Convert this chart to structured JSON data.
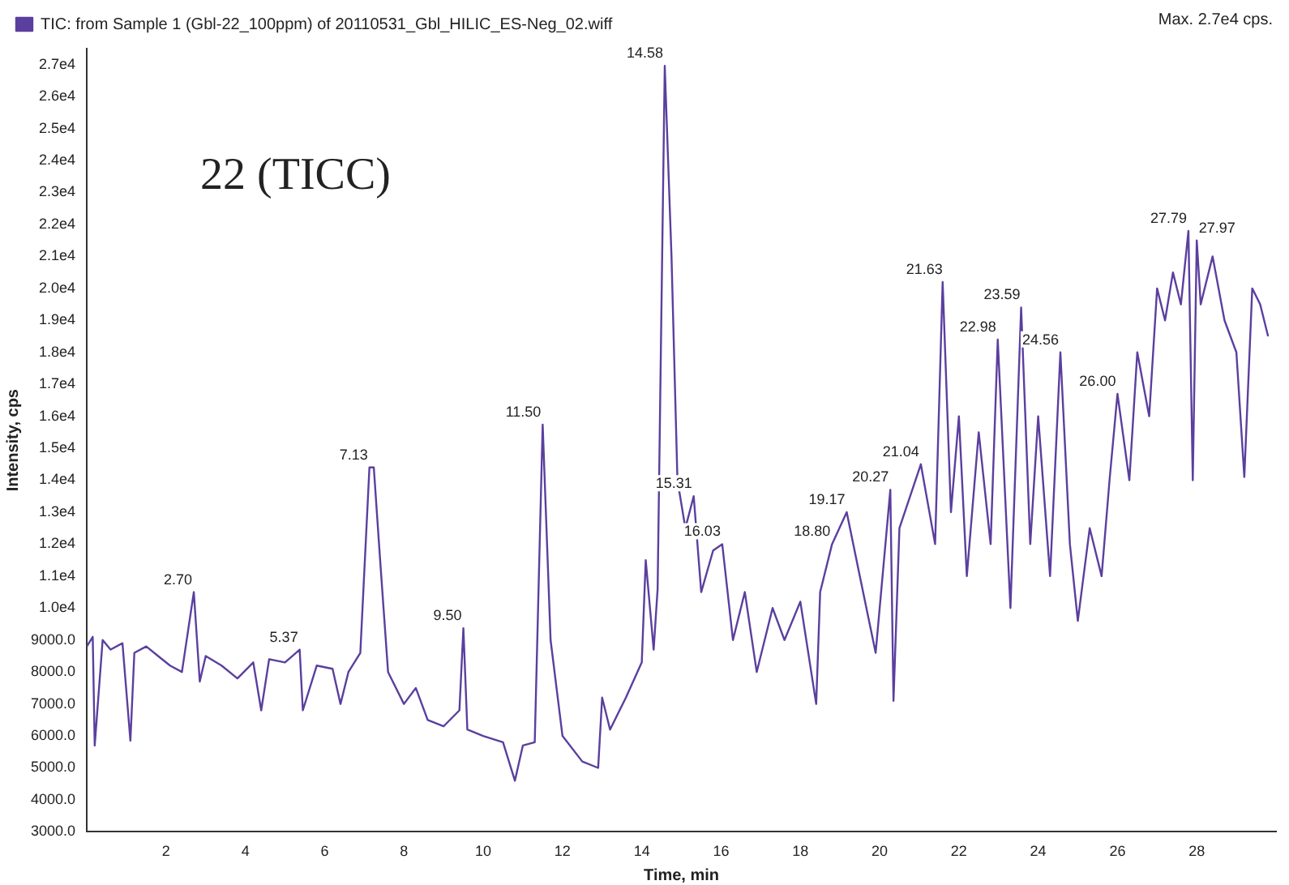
{
  "chart_data": {
    "type": "line",
    "xlabel": "Time, min",
    "ylabel": "Intensity, cps",
    "legend": "top left",
    "grid": false,
    "marker": "none",
    "line_style": "solid",
    "xlim": [
      0,
      30
    ],
    "xticks": [
      2,
      4,
      6,
      8,
      10,
      12,
      14,
      16,
      18,
      20,
      22,
      24,
      26,
      28
    ],
    "ylim": [
      3000,
      27500
    ],
    "yticks": [
      {
        "value": 3000,
        "label": "3000.0"
      },
      {
        "value": 4000,
        "label": "4000.0"
      },
      {
        "value": 5000,
        "label": "5000.0"
      },
      {
        "value": 6000,
        "label": "6000.0"
      },
      {
        "value": 7000,
        "label": "7000.0"
      },
      {
        "value": 8000,
        "label": "8000.0"
      },
      {
        "value": 9000,
        "label": "9000.0"
      },
      {
        "value": 10000,
        "label": "1.0e4"
      },
      {
        "value": 11000,
        "label": "1.1e4"
      },
      {
        "value": 12000,
        "label": "1.2e4"
      },
      {
        "value": 13000,
        "label": "1.3e4"
      },
      {
        "value": 14000,
        "label": "1.4e4"
      },
      {
        "value": 15000,
        "label": "1.5e4"
      },
      {
        "value": 16000,
        "label": "1.6e4"
      },
      {
        "value": 17000,
        "label": "1.7e4"
      },
      {
        "value": 18000,
        "label": "1.8e4"
      },
      {
        "value": 19000,
        "label": "1.9e4"
      },
      {
        "value": 20000,
        "label": "2.0e4"
      },
      {
        "value": 21000,
        "label": "2.1e4"
      },
      {
        "value": 22000,
        "label": "2.2e4"
      },
      {
        "value": 23000,
        "label": "2.3e4"
      },
      {
        "value": 24000,
        "label": "2.4e4"
      },
      {
        "value": 25000,
        "label": "2.5e4"
      },
      {
        "value": 26000,
        "label": "2.6e4"
      },
      {
        "value": 27000,
        "label": "2.7e4"
      }
    ],
    "series": [
      {
        "name": "TIC: from Sample 1 (Gbl-22_100ppm) of 20110531_Gbl_HILIC_ES-Neg_02.wiff",
        "color": "#5b3f9e",
        "x": [
          0,
          0.15,
          0.2,
          0.4,
          0.6,
          0.9,
          1.1,
          1.2,
          1.5,
          1.8,
          2.1,
          2.4,
          2.7,
          2.85,
          3.0,
          3.4,
          3.8,
          4.2,
          4.4,
          4.6,
          5.0,
          5.37,
          5.45,
          5.8,
          6.2,
          6.4,
          6.6,
          6.9,
          7.13,
          7.24,
          7.4,
          7.6,
          8.0,
          8.3,
          8.6,
          9.0,
          9.4,
          9.5,
          9.6,
          10.0,
          10.5,
          10.8,
          11.0,
          11.3,
          11.5,
          11.7,
          12.0,
          12.5,
          12.9,
          13.0,
          13.2,
          13.6,
          14.0,
          14.1,
          14.3,
          14.4,
          14.58,
          14.75,
          14.9,
          15.1,
          15.31,
          15.5,
          15.8,
          16.03,
          16.3,
          16.6,
          16.9,
          17.3,
          17.6,
          18.0,
          18.4,
          18.5,
          18.8,
          19.17,
          19.5,
          19.9,
          20.27,
          20.35,
          20.5,
          21.04,
          21.4,
          21.59,
          21.8,
          22.0,
          22.2,
          22.5,
          22.8,
          22.98,
          23.3,
          23.57,
          23.8,
          24.0,
          24.3,
          24.56,
          24.8,
          25.0,
          25.3,
          25.6,
          25.8,
          26.0,
          26.3,
          26.5,
          26.8,
          27.0,
          27.2,
          27.4,
          27.6,
          27.79,
          27.9,
          28.0,
          28.1,
          28.4,
          28.7,
          29.0,
          29.2,
          29.4,
          29.6,
          29.8
        ],
        "values": [
          8800,
          9100,
          5700,
          9000,
          8700,
          8900,
          5850,
          8600,
          8800,
          8500,
          8200,
          8000,
          10500,
          7700,
          8500,
          8200,
          7800,
          8300,
          6800,
          8400,
          8300,
          8700,
          6800,
          8200,
          8100,
          7000,
          8000,
          8600,
          14400,
          14400,
          11500,
          8000,
          7000,
          7500,
          6500,
          6300,
          6800,
          9370,
          6200,
          6000,
          5800,
          4600,
          5700,
          5800,
          15740,
          9000,
          6000,
          5200,
          5000,
          7200,
          6200,
          7200,
          8300,
          11500,
          8700,
          10600,
          26960,
          21000,
          14000,
          12500,
          13500,
          10500,
          11800,
          12000,
          9000,
          10500,
          8000,
          10000,
          9000,
          10200,
          7000,
          10500,
          12000,
          13000,
          11000,
          8600,
          13700,
          7100,
          12500,
          14500,
          12000,
          20200,
          13000,
          16000,
          11000,
          15500,
          12000,
          18400,
          10000,
          19400,
          12000,
          16000,
          11000,
          18000,
          12000,
          9600,
          12500,
          11000,
          14000,
          16700,
          14000,
          18000,
          16000,
          20000,
          19000,
          20500,
          19500,
          21800,
          14000,
          21500,
          19500,
          21000,
          19000,
          18000,
          14100,
          20000,
          19500,
          18500
        ]
      }
    ],
    "annotations": [
      "22 (TICC)",
      "Max. 2.7e4 cps.",
      {
        "text": "2.70",
        "x": 2.7,
        "y": 10500
      },
      {
        "text": "5.37",
        "x": 5.37,
        "y": 8700
      },
      {
        "text": "7.13",
        "x": 7.13,
        "y": 14400
      },
      {
        "text": "9.50",
        "x": 9.5,
        "y": 9370
      },
      {
        "text": "11.50",
        "x": 11.5,
        "y": 15740
      },
      {
        "text": "14.58",
        "x": 14.58,
        "y": 26960
      },
      {
        "text": "15.31",
        "x": 15.31,
        "y": 13500
      },
      {
        "text": "16.03",
        "x": 16.03,
        "y": 12000
      },
      {
        "text": "18.80",
        "x": 18.8,
        "y": 12000
      },
      {
        "text": "19.17",
        "x": 19.17,
        "y": 13000
      },
      {
        "text": "20.27",
        "x": 20.27,
        "y": 13700
      },
      {
        "text": "21.04",
        "x": 21.04,
        "y": 14500
      },
      {
        "text": "21.63",
        "x": 21.63,
        "y": 20200
      },
      {
        "text": "22.98",
        "x": 22.98,
        "y": 18400
      },
      {
        "text": "23.59",
        "x": 23.59,
        "y": 19400
      },
      {
        "text": "24.56",
        "x": 24.56,
        "y": 18000
      },
      {
        "text": "26.00",
        "x": 26.0,
        "y": 16700
      },
      {
        "text": "27.79",
        "x": 27.79,
        "y": 21800
      },
      {
        "text": "27.97",
        "x": 27.97,
        "y": 21500
      }
    ]
  }
}
